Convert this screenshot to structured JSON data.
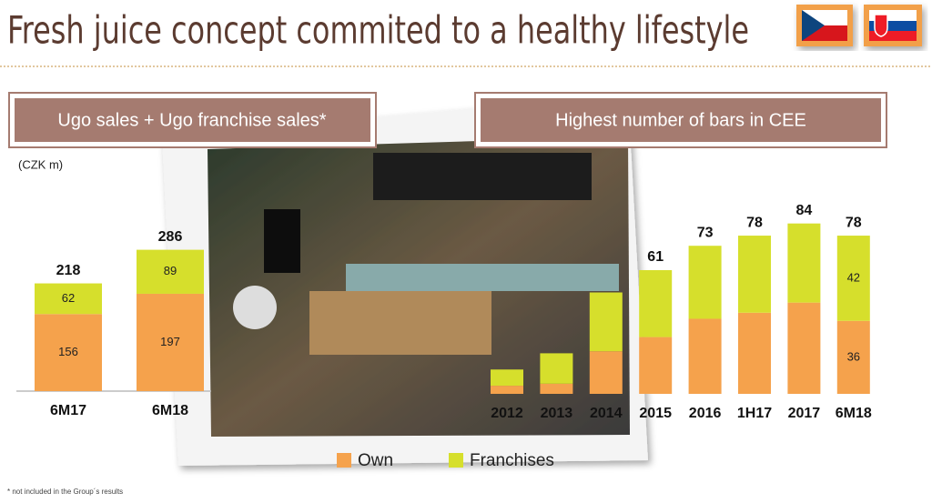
{
  "header": {
    "title": "Fresh juice concept commited to a healthy lifestyle"
  },
  "footnote": "* not included in the Group´s results",
  "chart_data": [
    {
      "type": "stacked-bar",
      "title": "Ugo sales + Ugo franchise sales*",
      "unit_label": "(CZK m)",
      "categories": [
        "6M17",
        "6M18"
      ],
      "series": [
        {
          "color": "#f5a24c",
          "values": [
            156,
            197
          ]
        },
        {
          "color": "#d6df2c",
          "values": [
            62,
            89
          ]
        }
      ],
      "totals": [
        218,
        286
      ],
      "segment_labels": [
        true,
        true
      ],
      "ylim": [
        0,
        300
      ],
      "axis_line": true
    },
    {
      "type": "stacked-bar",
      "title": "Highest number of bars in CEE",
      "categories": [
        "2012",
        "2013",
        "2014",
        "2015",
        "2016",
        "1H17",
        "2017",
        "6M18"
      ],
      "series": [
        {
          "name": "Own",
          "color": "#f5a24c",
          "values": [
            4,
            5,
            21,
            28,
            37,
            40,
            45,
            36
          ]
        },
        {
          "name": "Franchises",
          "color": "#d6df2c",
          "values": [
            8,
            15,
            29,
            33,
            36,
            38,
            39,
            42
          ]
        }
      ],
      "totals": [
        null,
        null,
        null,
        61,
        73,
        78,
        84,
        78
      ],
      "segment_labels": [
        false,
        false,
        false,
        false,
        false,
        false,
        false,
        true
      ],
      "ylim": [
        0,
        90
      ],
      "axis_line": false
    }
  ]
}
